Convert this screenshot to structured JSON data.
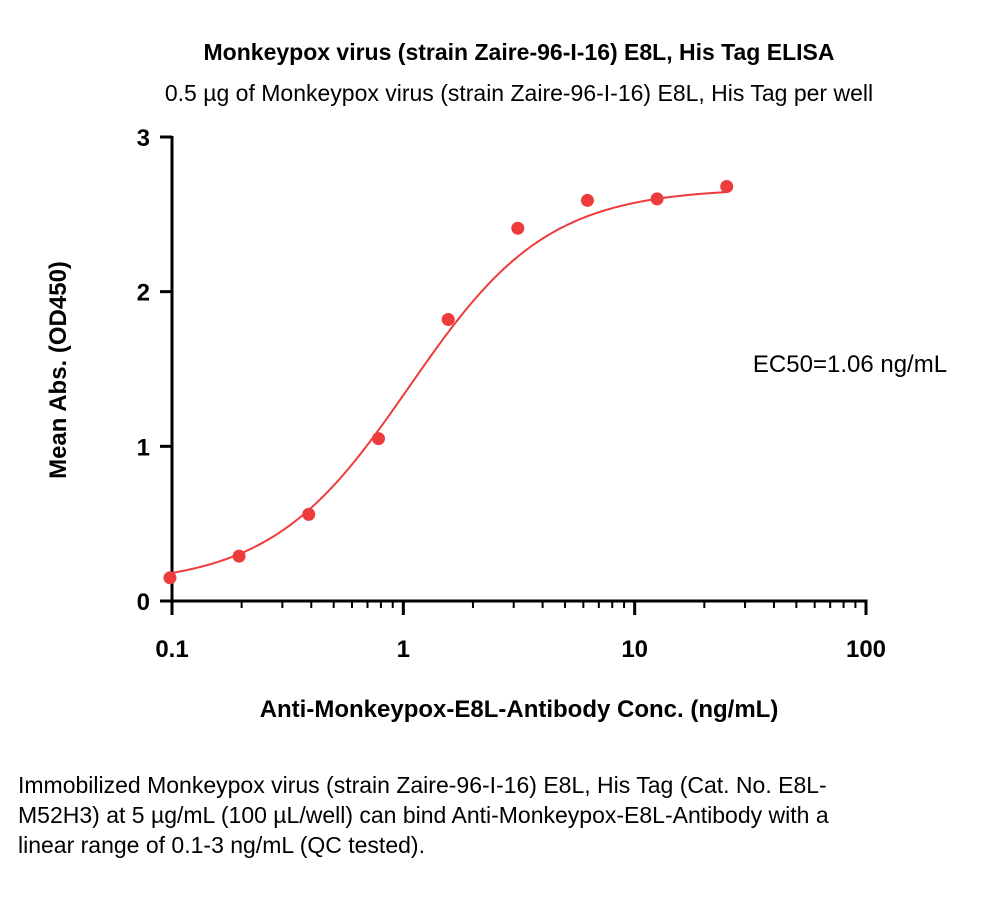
{
  "chart_data": {
    "type": "scatter",
    "title": "Monkeypox virus (strain Zaire-96-I-16) E8L, His Tag ELISA",
    "subtitle": "0.5 µg of Monkeypox virus (strain Zaire-96-I-16) E8L, His Tag per well",
    "xlabel": "Anti-Monkeypox-E8L-Antibody Conc. (ng/mL)",
    "ylabel": "Mean Abs. (OD450)",
    "xscale": "log",
    "xlim": [
      0.1,
      100
    ],
    "ylim": [
      0,
      3
    ],
    "xticks": [
      {
        "value": 0.1,
        "label": "0.1"
      },
      {
        "value": 1,
        "label": "1"
      },
      {
        "value": 10,
        "label": "10"
      },
      {
        "value": 100,
        "label": "100"
      }
    ],
    "yticks": [
      {
        "value": 0,
        "label": "0"
      },
      {
        "value": 1,
        "label": "1"
      },
      {
        "value": 2,
        "label": "2"
      },
      {
        "value": 3,
        "label": "3"
      }
    ],
    "grid": false,
    "series": [
      {
        "x": [
          0.098,
          0.195,
          0.39,
          0.781,
          1.563,
          3.125,
          6.25,
          12.5,
          25
        ],
        "y": [
          0.15,
          0.29,
          0.56,
          1.05,
          1.82,
          2.41,
          2.59,
          2.6,
          2.68
        ],
        "color": "#ee3b3b",
        "fit": "4PL"
      }
    ],
    "fit_params": {
      "bottom": 0.1,
      "top": 2.67,
      "ec50": 1.06,
      "hill": 1.45
    },
    "annotation": "EC50=1.06 ng/mL"
  },
  "caption": "Immobilized Monkeypox virus (strain Zaire-96-I-16) E8L, His Tag (Cat. No. E8L-M52H3) at 5 µg/mL (100 µL/well) can bind Anti-Monkeypox-E8L-Antibody with a linear range of 0.1-3 ng/mL (QC tested)."
}
